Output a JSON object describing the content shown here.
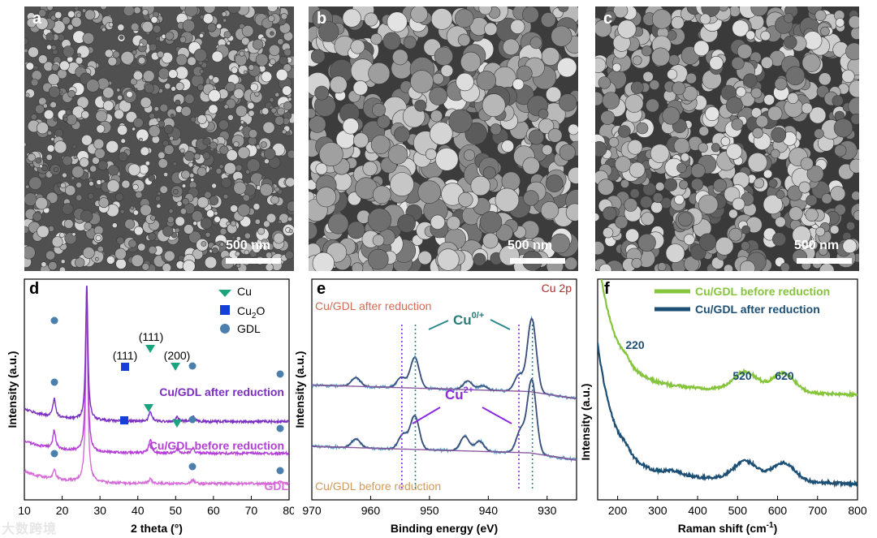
{
  "panels": {
    "a": {
      "letter": "a",
      "scale": "500 nm"
    },
    "b": {
      "letter": "b",
      "scale": "500 nm"
    },
    "c": {
      "letter": "c",
      "scale": "500 nm"
    }
  },
  "chart_data": [
    {
      "id": "d",
      "letter": "d",
      "type": "line",
      "xlabel": "2 theta (°)",
      "ylabel": "Intensity (a.u.)",
      "xlim": [
        10,
        80
      ],
      "xticks": [
        10,
        20,
        30,
        40,
        50,
        60,
        70,
        80
      ],
      "series": [
        {
          "name": "GDL",
          "color": "#d56bd9",
          "baseline": 0.0,
          "peaks": [
            [
              17.9,
              0.7
            ],
            [
              26.5,
              13.0
            ],
            [
              43.3,
              0.3
            ],
            [
              54.6,
              0.25
            ],
            [
              77.5,
              0.15
            ]
          ]
        },
        {
          "name": "Cu/GDL before reduction",
          "color": "#b43fd6",
          "baseline": 2.2,
          "peaks": [
            [
              17.9,
              1.3
            ],
            [
              26.5,
              12.0
            ],
            [
              43.3,
              1.0
            ],
            [
              50.4,
              0.3
            ],
            [
              54.6,
              0.35
            ]
          ]
        },
        {
          "name": "Cu/GDL after reduction",
          "color": "#7a2fc0",
          "baseline": 4.5,
          "peaks": [
            [
              17.9,
              1.3
            ],
            [
              26.5,
              10.0
            ],
            [
              43.3,
              0.7
            ],
            [
              50.4,
              0.3
            ],
            [
              54.6,
              0.35
            ]
          ]
        }
      ],
      "legend": [
        {
          "label": "Cu",
          "marker": "triangle",
          "color": "#1aa37c"
        },
        {
          "label": "Cu",
          "sub": "2",
          "tail": "O",
          "marker": "square",
          "color": "#1440d8"
        },
        {
          "label": "GDL",
          "marker": "circle",
          "color": "#4a7fae"
        }
      ],
      "annotations": [
        "(111)",
        "(111)",
        "(200)"
      ]
    },
    {
      "id": "e",
      "letter": "e",
      "type": "line",
      "xlabel": "Binding energy (eV)",
      "ylabel": "Intensity (a.u.)",
      "xlim": [
        970,
        925
      ],
      "xticks": [
        970,
        960,
        950,
        940,
        930
      ],
      "title_right": "Cu 2p",
      "labels": {
        "after": "Cu/GDL after reduction",
        "before": "Cu/GDL before reduction",
        "cu0": "Cu",
        "cu0_sup": "0/+",
        "cu2": "Cu",
        "cu2_sup": "2+"
      },
      "series": [
        {
          "name": "Cu/GDL after reduction",
          "color": "#3b4f7c",
          "baseline": 4.2,
          "peaks": [
            [
              962.5,
              0.6
            ],
            [
              954.8,
              0.7
            ],
            [
              952.5,
              2.1
            ],
            [
              943.5,
              0.6
            ],
            [
              941.0,
              0.3
            ],
            [
              934.8,
              1.1
            ],
            [
              932.6,
              5.0
            ]
          ]
        },
        {
          "name": "Cu/GDL before reduction",
          "color": "#3b4f7c",
          "baseline": 0.0,
          "peaks": [
            [
              962.5,
              0.6
            ],
            [
              954.5,
              1.0
            ],
            [
              952.5,
              2.3
            ],
            [
              944.0,
              1.0
            ],
            [
              941.5,
              0.7
            ],
            [
              934.5,
              1.5
            ],
            [
              932.6,
              5.0
            ]
          ]
        }
      ]
    },
    {
      "id": "f",
      "letter": "f",
      "type": "line",
      "xlabel": "Raman shift (cm",
      "xlabel_sup": "-1",
      "xlabel_tail": ")",
      "ylabel": "Intensity (a.u.)",
      "xlim": [
        150,
        800
      ],
      "xticks": [
        200,
        300,
        400,
        500,
        600,
        700,
        800
      ],
      "peak_labels": [
        "220",
        "520",
        "620"
      ],
      "series": [
        {
          "name": "Cu/GDL before reduction",
          "color": "#86c43c",
          "offset": 2.2
        },
        {
          "name": "Cu/GDL after reduction",
          "color": "#1d4e73",
          "offset": 0.0
        }
      ]
    }
  ],
  "watermark": "大数跨境"
}
